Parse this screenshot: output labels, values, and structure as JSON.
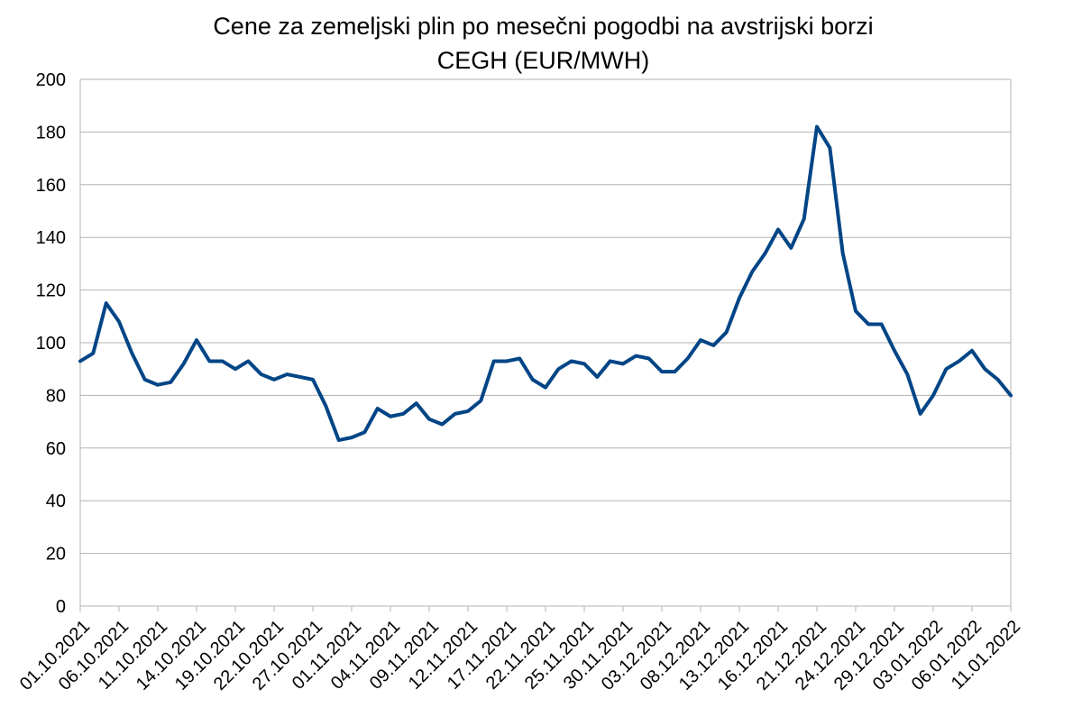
{
  "chart_data": {
    "type": "line",
    "title": "Cene za zemeljski plin po mesečni pogodbi na avstrijski borzi",
    "subtitle": "CEGH (EUR/MWH)",
    "xlabel": "",
    "ylabel": "",
    "ylim": [
      0,
      200
    ],
    "y_ticks": [
      0,
      20,
      40,
      60,
      80,
      100,
      120,
      140,
      160,
      180,
      200
    ],
    "grid": true,
    "legend": "none",
    "line_color": "#004586",
    "x_tick_labels": [
      "01.10.2021",
      "06.10.2021",
      "11.10.2021",
      "14.10.2021",
      "19.10.2021",
      "22.10.2021",
      "27.10.2021",
      "01.11.2021",
      "04.11.2021",
      "09.11.2021",
      "12.11.2021",
      "17.11.2021",
      "22.11.2021",
      "25.11.2021",
      "30.11.2021",
      "03.12.2021",
      "08.12.2021",
      "13.12.2021",
      "16.12.2021",
      "21.12.2021",
      "24.12.2021",
      "29.12.2021",
      "03.01.2022",
      "06.01.2022",
      "11.01.2022"
    ],
    "series": [
      {
        "values": [
          93,
          96,
          115,
          108,
          96,
          86,
          84,
          85,
          92,
          101,
          93,
          93,
          90,
          93,
          88,
          86,
          88,
          87,
          86,
          76,
          63,
          64,
          66,
          75,
          72,
          73,
          77,
          71,
          69,
          73,
          74,
          78,
          93,
          93,
          94,
          86,
          83,
          90,
          93,
          92,
          87,
          93,
          92,
          95,
          94,
          89,
          89,
          94,
          101,
          99,
          104,
          117,
          127,
          134,
          143,
          136,
          147,
          182,
          174,
          134,
          112,
          107,
          107,
          97,
          88,
          73,
          80,
          90,
          93,
          97,
          90,
          86,
          80
        ]
      }
    ]
  }
}
